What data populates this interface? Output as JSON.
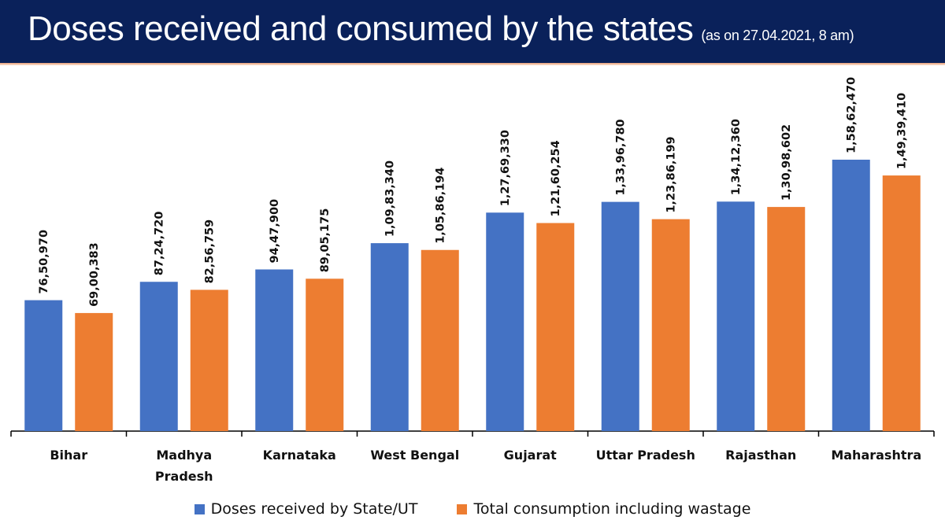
{
  "header": {
    "title": "Doses received and consumed by the states",
    "subtitle": "(as on 27.04.2021, 8 am)"
  },
  "colors": {
    "header_bg": "#0a215a",
    "received": "#4472c4",
    "consumed": "#ed7d31"
  },
  "chart_data": {
    "type": "bar",
    "title": "Doses received and consumed by the states (as on 27.04.2021, 8 am)",
    "xlabel": "",
    "ylabel": "",
    "ylim": [
      0,
      20000000
    ],
    "grid": false,
    "legend_position": "bottom",
    "categories": [
      "Bihar",
      "Madhya Pradesh",
      "Karnataka",
      "West Bengal",
      "Gujarat",
      "Uttar Pradesh",
      "Rajasthan",
      "Maharashtra"
    ],
    "category_label_lines": [
      [
        "Bihar"
      ],
      [
        "Madhya",
        "Pradesh"
      ],
      [
        "Karnataka"
      ],
      [
        "West Bengal"
      ],
      [
        "Gujarat"
      ],
      [
        "Uttar Pradesh"
      ],
      [
        "Rajasthan"
      ],
      [
        "Maharashtra"
      ]
    ],
    "series": [
      {
        "name": "Doses received by State/UT",
        "color": "#4472c4",
        "values": [
          7650970,
          8724720,
          9447900,
          10983340,
          12769330,
          13396780,
          13412360,
          15862470
        ],
        "labels": [
          "76,50,970",
          "87,24,720",
          "94,47,900",
          "1,09,83,340",
          "1,27,69,330",
          "1,33,96,780",
          "1,34,12,360",
          "1,58,62,470"
        ]
      },
      {
        "name": "Total consumption including wastage",
        "color": "#ed7d31",
        "values": [
          6900383,
          8256759,
          8905175,
          10586194,
          12160254,
          12386199,
          13098602,
          14939410
        ],
        "labels": [
          "69,00,383",
          "82,56,759",
          "89,05,175",
          "1,05,86,194",
          "1,21,60,254",
          "1,23,86,199",
          "1,30,98,602",
          "1,49,39,410"
        ]
      }
    ]
  }
}
